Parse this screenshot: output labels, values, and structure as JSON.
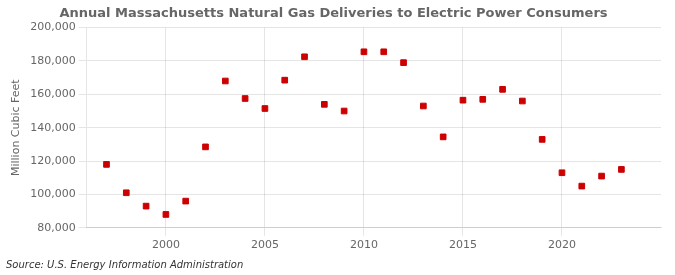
{
  "chart_data": {
    "type": "scatter",
    "title": "Annual Massachusetts Natural Gas Deliveries to Electric Power Consumers",
    "ylabel": "Million Cubic Feet",
    "annotation": "Source: U.S. Energy Information Administration",
    "x": [
      1997,
      1998,
      1999,
      2000,
      2001,
      2002,
      2003,
      2004,
      2005,
      2006,
      2007,
      2008,
      2009,
      2010,
      2011,
      2012,
      2013,
      2014,
      2015,
      2016,
      2017,
      2018,
      2019,
      2020,
      2021,
      2022,
      2023
    ],
    "values": [
      118000,
      101000,
      93000,
      88000,
      96000,
      128500,
      168000,
      157500,
      151500,
      168500,
      182500,
      154000,
      150000,
      185500,
      185500,
      179000,
      153000,
      134500,
      156500,
      157000,
      163000,
      156000,
      133000,
      113000,
      105000,
      111000,
      115000
    ],
    "color": "#cc0000",
    "marker": "square",
    "xlim": [
      1996,
      2025
    ],
    "xticks": [
      2000,
      2005,
      2010,
      2015,
      2020
    ],
    "ylim": [
      80000,
      200000
    ],
    "yticks": [
      {
        "value": 80000,
        "label": "80,000"
      },
      {
        "value": 100000,
        "label": "100,000"
      },
      {
        "value": 120000,
        "label": "120,000"
      },
      {
        "value": 140000,
        "label": "140,000"
      },
      {
        "value": 160000,
        "label": "160,000"
      },
      {
        "value": 180000,
        "label": "180,000"
      },
      {
        "value": 200000,
        "label": "200,000"
      }
    ],
    "grid": true
  }
}
